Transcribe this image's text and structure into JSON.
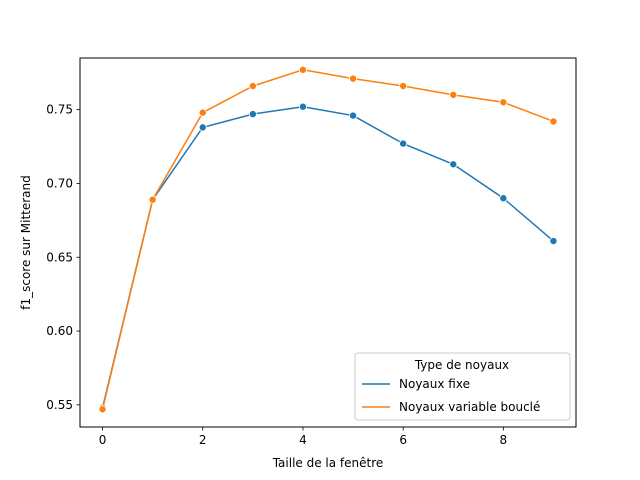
{
  "chart_data": {
    "type": "line",
    "xlabel": "Taille de la fenêtre",
    "ylabel": "f1_score sur Mitterand",
    "xlim": [
      -0.45,
      9.45
    ],
    "ylim": [
      0.535,
      0.785
    ],
    "xticks": [
      0,
      2,
      4,
      6,
      8
    ],
    "yticks": [
      0.55,
      0.6,
      0.65,
      0.7,
      0.75
    ],
    "ytick_labels": [
      "0.55",
      "0.60",
      "0.65",
      "0.70",
      "0.75"
    ],
    "grid": false,
    "legend": {
      "title": "Type de noyaux",
      "placement": "lower-right"
    },
    "x": [
      0,
      1,
      2,
      3,
      4,
      5,
      6,
      7,
      8,
      9
    ],
    "series": [
      {
        "name": "Noyaux fixe",
        "color": "#1f77b4",
        "values": [
          0.548,
          0.689,
          0.738,
          0.747,
          0.752,
          0.746,
          0.727,
          0.713,
          0.69,
          0.661
        ]
      },
      {
        "name": "Noyaux variable bouclé",
        "color": "#ff7f0e",
        "values": [
          0.547,
          0.689,
          0.748,
          0.766,
          0.777,
          0.771,
          0.766,
          0.76,
          0.755,
          0.742
        ]
      }
    ]
  }
}
